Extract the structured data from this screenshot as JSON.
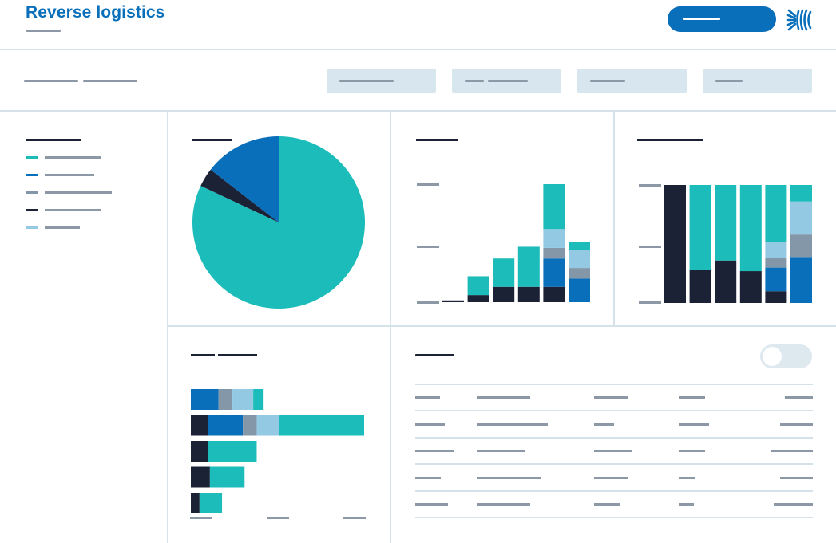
{
  "app": {
    "title": "Reverse logistics"
  },
  "colors": {
    "brand_blue": "#0a6fba",
    "teal": "#1bbcb9",
    "navy": "#1b2236",
    "slate": "#8397a8",
    "light_blue": "#93c9e3",
    "panel_border": "#d5e2ea",
    "chip_fill": "#d8e6ef"
  },
  "icons": {
    "brand": "brand-wave-logo-icon"
  },
  "legend": {
    "items": [
      {
        "color": "#1bbcb9"
      },
      {
        "color": "#0a6fba"
      },
      {
        "color": "#8397a8"
      },
      {
        "color": "#1b2236"
      },
      {
        "color": "#93c9e3"
      }
    ]
  },
  "chart_data": [
    {
      "type": "pie",
      "slices": [
        {
          "color": "#1bbcb9",
          "value": 82
        },
        {
          "color": "#1b2236",
          "value": 3.5
        },
        {
          "color": "#0a6fba",
          "value": 14.5
        }
      ]
    },
    {
      "type": "bar",
      "stacked": true,
      "ylim": [
        0,
        100
      ],
      "stack_order": [
        "navy",
        "blue",
        "slate",
        "light_blue",
        "teal"
      ],
      "colors": {
        "navy": "#1b2236",
        "blue": "#0a6fba",
        "slate": "#8397a8",
        "light_blue": "#93c9e3",
        "teal": "#1bbcb9"
      },
      "bars": [
        {
          "navy": 1.5
        },
        {
          "navy": 6,
          "teal": 16
        },
        {
          "navy": 13,
          "teal": 24
        },
        {
          "navy": 13,
          "teal": 34
        },
        {
          "navy": 13,
          "blue": 24,
          "slate": 9,
          "light_blue": 16,
          "teal": 38
        },
        {
          "blue": 20,
          "slate": 9,
          "light_blue": 15,
          "teal": 7
        }
      ]
    },
    {
      "type": "bar",
      "stacked": true,
      "ylim": [
        0,
        100
      ],
      "stack_order": [
        "navy",
        "blue",
        "slate",
        "light_blue",
        "teal"
      ],
      "colors": {
        "navy": "#1b2236",
        "blue": "#0a6fba",
        "slate": "#8397a8",
        "light_blue": "#93c9e3",
        "teal": "#1bbcb9"
      },
      "bars": [
        {
          "navy": 100
        },
        {
          "navy": 28,
          "teal": 72
        },
        {
          "navy": 36,
          "teal": 64
        },
        {
          "navy": 27,
          "teal": 73
        },
        {
          "navy": 10,
          "blue": 20,
          "slate": 8,
          "light_blue": 14,
          "teal": 48
        },
        {
          "blue": 39,
          "slate": 19,
          "light_blue": 28,
          "teal": 14
        }
      ]
    },
    {
      "type": "bar",
      "orientation": "horizontal",
      "stacked": true,
      "xlim": [
        0,
        100
      ],
      "stack_order": [
        "navy",
        "blue",
        "slate",
        "light_blue",
        "teal"
      ],
      "colors": {
        "navy": "#1b2236",
        "blue": "#0a6fba",
        "slate": "#8397a8",
        "light_blue": "#93c9e3",
        "teal": "#1bbcb9"
      },
      "bars": [
        {
          "blue": 16,
          "slate": 8,
          "light_blue": 12,
          "teal": 6
        },
        {
          "navy": 10,
          "blue": 20,
          "slate": 8,
          "light_blue": 13,
          "teal": 49
        },
        {
          "navy": 10,
          "teal": 28
        },
        {
          "navy": 11,
          "teal": 20
        },
        {
          "navy": 5,
          "teal": 13
        }
      ]
    }
  ]
}
